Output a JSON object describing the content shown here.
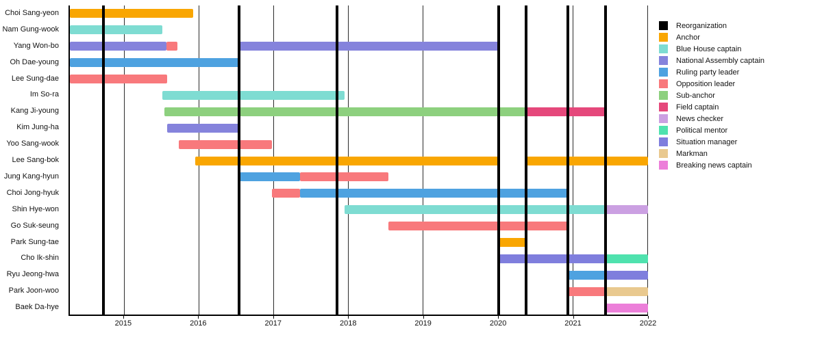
{
  "chart_data": {
    "type": "gantt",
    "title": "",
    "x_axis": {
      "start": 2014.27,
      "end": 2022.0,
      "ticks": [
        {
          "value": 2015,
          "label": "2015"
        },
        {
          "value": 2016,
          "label": "2016"
        },
        {
          "value": 2017,
          "label": "2017"
        },
        {
          "value": 2018,
          "label": "2018"
        },
        {
          "value": 2019,
          "label": "2019"
        },
        {
          "value": 2020,
          "label": "2020"
        },
        {
          "value": 2021,
          "label": "2021"
        },
        {
          "value": 2022,
          "label": "2022"
        }
      ]
    },
    "reorganization_lines": [
      2014.72,
      2016.53,
      2017.84,
      2020.0,
      2020.37,
      2020.93,
      2021.43
    ],
    "roles": {
      "reorganization": {
        "label": "Reorganization",
        "color": "#000000"
      },
      "anchor": {
        "label": "Anchor",
        "color": "#F9A602"
      },
      "blue_house": {
        "label": "Blue House captain",
        "color": "#7EDCD2"
      },
      "assembly": {
        "label": "National Assembly captain",
        "color": "#8583DC"
      },
      "ruling": {
        "label": "Ruling party leader",
        "color": "#4EA2E0"
      },
      "opposition": {
        "label": "Opposition leader",
        "color": "#F8797C"
      },
      "subanchor": {
        "label": "Sub-anchor",
        "color": "#8DD07E"
      },
      "field": {
        "label": "Field captain",
        "color": "#E5487B"
      },
      "news_checker": {
        "label": "News checker",
        "color": "#CBA0E2"
      },
      "mentor": {
        "label": "Political mentor",
        "color": "#4FE2AE"
      },
      "situation": {
        "label": "Situation manager",
        "color": "#7F7EDD"
      },
      "markman": {
        "label": "Markman",
        "color": "#E9C98F"
      },
      "breaking": {
        "label": "Breaking news captain",
        "color": "#EC7FD9"
      }
    },
    "legend": [
      "reorganization",
      "anchor",
      "blue_house",
      "assembly",
      "ruling",
      "opposition",
      "subanchor",
      "field",
      "news_checker",
      "mentor",
      "situation",
      "markman",
      "breaking"
    ],
    "people": [
      {
        "name": "Choi Sang-yeon",
        "bars": [
          {
            "role": "anchor",
            "start": 2014.27,
            "end": 2015.92
          }
        ]
      },
      {
        "name": "Nam Gung-wook",
        "bars": [
          {
            "role": "blue_house",
            "start": 2014.27,
            "end": 2015.51
          }
        ]
      },
      {
        "name": "Yang Won-bo",
        "bars": [
          {
            "role": "assembly",
            "start": 2014.27,
            "end": 2015.56
          },
          {
            "role": "opposition",
            "start": 2015.56,
            "end": 2015.71
          },
          {
            "role": "assembly",
            "start": 2016.53,
            "end": 2020.0
          }
        ]
      },
      {
        "name": "Oh Dae-young",
        "bars": [
          {
            "role": "ruling",
            "start": 2014.27,
            "end": 2016.53
          }
        ]
      },
      {
        "name": "Lee Sung-dae",
        "bars": [
          {
            "role": "opposition",
            "start": 2014.27,
            "end": 2015.57
          }
        ]
      },
      {
        "name": "Im So-ra",
        "bars": [
          {
            "role": "blue_house",
            "start": 2015.51,
            "end": 2017.94
          }
        ]
      },
      {
        "name": "Kang Ji-young",
        "bars": [
          {
            "role": "subanchor",
            "start": 2015.53,
            "end": 2020.37
          },
          {
            "role": "field",
            "start": 2020.37,
            "end": 2021.43
          }
        ]
      },
      {
        "name": "Kim Jung-ha",
        "bars": [
          {
            "role": "assembly",
            "start": 2015.57,
            "end": 2016.53
          }
        ]
      },
      {
        "name": "Yoo Sang-wook",
        "bars": [
          {
            "role": "opposition",
            "start": 2015.73,
            "end": 2016.97
          }
        ]
      },
      {
        "name": "Lee Sang-bok",
        "bars": [
          {
            "role": "anchor",
            "start": 2015.95,
            "end": 2020.0
          },
          {
            "role": "anchor",
            "start": 2020.37,
            "end": 2022.0
          }
        ]
      },
      {
        "name": "Jung Kang-hyun",
        "bars": [
          {
            "role": "ruling",
            "start": 2016.53,
            "end": 2017.35
          },
          {
            "role": "opposition",
            "start": 2017.35,
            "end": 2018.53
          }
        ]
      },
      {
        "name": "Choi Jong-hyuk",
        "bars": [
          {
            "role": "opposition",
            "start": 2016.97,
            "end": 2017.35
          },
          {
            "role": "ruling",
            "start": 2017.35,
            "end": 2020.93
          }
        ]
      },
      {
        "name": "Shin Hye-won",
        "bars": [
          {
            "role": "blue_house",
            "start": 2017.94,
            "end": 2021.43
          },
          {
            "role": "news_checker",
            "start": 2021.43,
            "end": 2022.0
          }
        ]
      },
      {
        "name": "Go Suk-seung",
        "bars": [
          {
            "role": "opposition",
            "start": 2018.53,
            "end": 2020.93
          }
        ]
      },
      {
        "name": "Park Sung-tae",
        "bars": [
          {
            "role": "anchor",
            "start": 2020.0,
            "end": 2020.37
          }
        ]
      },
      {
        "name": "Cho Ik-shin",
        "bars": [
          {
            "role": "situation",
            "start": 2020.0,
            "end": 2021.43
          },
          {
            "role": "mentor",
            "start": 2021.43,
            "end": 2022.0
          }
        ]
      },
      {
        "name": "Ryu Jeong-hwa",
        "bars": [
          {
            "role": "ruling",
            "start": 2020.93,
            "end": 2021.43
          },
          {
            "role": "situation",
            "start": 2021.43,
            "end": 2022.0
          }
        ]
      },
      {
        "name": "Park Joon-woo",
        "bars": [
          {
            "role": "opposition",
            "start": 2020.93,
            "end": 2021.43
          },
          {
            "role": "markman",
            "start": 2021.43,
            "end": 2022.0
          }
        ]
      },
      {
        "name": "Baek Da-hye",
        "bars": [
          {
            "role": "breaking",
            "start": 2021.43,
            "end": 2022.0
          }
        ]
      }
    ]
  }
}
